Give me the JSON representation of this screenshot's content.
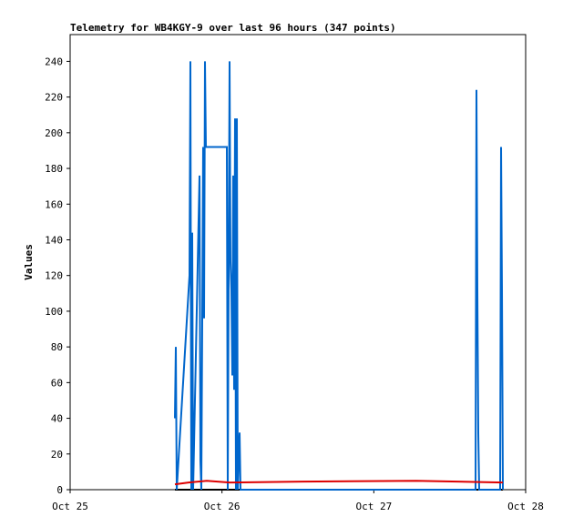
{
  "chart_data": {
    "type": "line",
    "title": "Telemetry for WB4KGY-9 over last 96 hours (347 points)",
    "y_label": "Values",
    "xlim": [
      0,
      3
    ],
    "xticks": [
      {
        "value": 0,
        "label": "Oct 25"
      },
      {
        "value": 1,
        "label": "Oct 26"
      },
      {
        "value": 2,
        "label": "Oct 27"
      },
      {
        "value": 3,
        "label": "Oct 28"
      }
    ],
    "ylim": [
      0,
      255
    ],
    "yticks": [
      0,
      20,
      40,
      60,
      80,
      100,
      120,
      140,
      160,
      180,
      200,
      220,
      240
    ],
    "series": [
      {
        "color": "#000000",
        "x": [
          0.69,
          2.85
        ],
        "values": [
          0,
          0
        ]
      },
      {
        "color": "#0066cc",
        "x": [
          0.69,
          0.696,
          0.702,
          0.786,
          0.792,
          0.798,
          0.804,
          0.81,
          0.852,
          0.858,
          0.864,
          0.876,
          0.882,
          0.888,
          0.894,
          1.032,
          1.038,
          1.05,
          1.056,
          1.062,
          1.068,
          1.074,
          1.08,
          1.086,
          1.092,
          1.098,
          1.104,
          1.116,
          1.122,
          2.67,
          2.676,
          2.682,
          2.688,
          2.694,
          2.832,
          2.838,
          2.844,
          2.85
        ],
        "values": [
          40,
          80,
          0,
          120,
          240,
          0,
          144,
          0,
          176,
          16,
          0,
          192,
          96,
          240,
          192,
          192,
          0,
          240,
          128,
          112,
          64,
          176,
          56,
          208,
          0,
          208,
          0,
          32,
          0,
          0,
          224,
          112,
          32,
          0,
          0,
          192,
          112,
          0
        ]
      },
      {
        "color": "#dd0000",
        "x": [
          0.69,
          0.78,
          0.9,
          1.05,
          1.53,
          2.28,
          2.85
        ],
        "values": [
          3,
          4,
          5,
          4,
          4.5,
          5,
          4
        ]
      }
    ]
  }
}
